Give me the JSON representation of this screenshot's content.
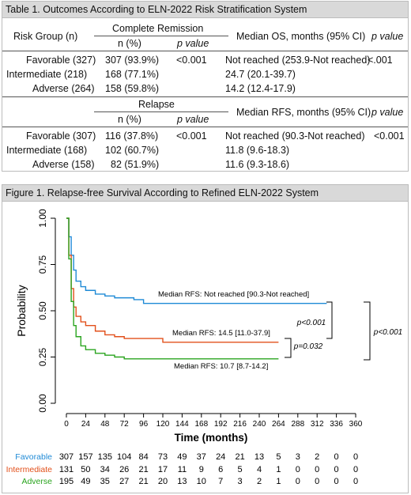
{
  "table1": {
    "title": "Table 1. Outcomes According to ELN-2022 Risk Stratification System",
    "h_risk_group": "Risk  Group  (n)",
    "h_complete_remission": "Complete Remission",
    "h_n_pct": "n (%)",
    "h_p_value": "p value",
    "h_median_os": "Median OS, months (95% CI)",
    "h_p_value_right": "p value",
    "cr_rows": [
      {
        "group": "Favorable (327)",
        "n": "307 (93.9%)",
        "p": "<0.001",
        "os": "Not reached (253.9-Not reached)",
        "p2": "<.001"
      },
      {
        "group": "Intermediate (218)",
        "n": "168 (77.1%)",
        "p": "",
        "os": "24.7 (20.1-39.7)",
        "p2": ""
      },
      {
        "group": "Adverse (264)",
        "n": "158 (59.8%)",
        "p": "",
        "os": "14.2 (12.4-17.9)",
        "p2": ""
      }
    ],
    "h_relapse": "Relapse",
    "h_n_pct_2": "n (%)",
    "h_p_value_2": "p value",
    "h_median_rfs": "Median RFS, months (95% CI)",
    "h_p_value_right_2": "p value",
    "rel_rows": [
      {
        "group": "Favorable (307)",
        "n": "116 (37.8%)",
        "p": "<0.001",
        "rfs": "Not reached (90.3-Not reached)",
        "p2": "<0.001"
      },
      {
        "group": "Intermediate (168)",
        "n": "102 (60.7%)",
        "p": "",
        "rfs": "11.8 (9.6-18.3)",
        "p2": ""
      },
      {
        "group": "Adverse (158)",
        "n": "82 (51.9%)",
        "p": "",
        "rfs": "11.6 (9.3-18.6)",
        "p2": ""
      }
    ]
  },
  "figure1": {
    "title": "Figure 1. Relapse-free Survival According to Refined ELN-2022 System",
    "ylabel": "Probability",
    "xlabel": "Time (months)",
    "y_ticks": [
      "0.00",
      "0.25",
      "0.50",
      "0.75",
      "1.00"
    ],
    "x_ticks": [
      "0",
      "24",
      "48",
      "72",
      "96",
      "120",
      "144",
      "168",
      "192",
      "216",
      "240",
      "264",
      "288",
      "312",
      "336",
      "360"
    ],
    "annot_fav": "Median RFS: Not reached [90.3-Not reached]",
    "annot_int": "Median RFS: 14.5 [11.0-37.9]",
    "annot_adv": "Median RFS: 10.7 [8.7-14.2]",
    "p_fav_int": "p<0.001",
    "p_int_adv": "p=0.032",
    "p_fav_adv": "p<0.001",
    "risk_labels": [
      "Favorable",
      "Intermediate",
      "Adverse"
    ],
    "risk_numbers": [
      [
        "307",
        "157",
        "135",
        "104",
        "84",
        "73",
        "49",
        "37",
        "24",
        "21",
        "13",
        "5",
        "3",
        "2",
        "0",
        "0"
      ],
      [
        "131",
        "50",
        "34",
        "26",
        "21",
        "17",
        "11",
        "9",
        "6",
        "5",
        "4",
        "1",
        "0",
        "0",
        "0",
        "0"
      ],
      [
        "195",
        "49",
        "35",
        "27",
        "21",
        "20",
        "13",
        "10",
        "7",
        "3",
        "2",
        "1",
        "0",
        "0",
        "0",
        "0"
      ]
    ]
  },
  "chart_data": {
    "type": "line",
    "title": "Figure 1. Relapse-free Survival According to Refined ELN-2022 System",
    "xlabel": "Time (months)",
    "ylabel": "Probability",
    "xlim": [
      0,
      360
    ],
    "ylim": [
      0,
      1
    ],
    "x_ticks": [
      0,
      24,
      48,
      72,
      96,
      120,
      144,
      168,
      192,
      216,
      240,
      264,
      288,
      312,
      336,
      360
    ],
    "y_ticks": [
      0,
      0.25,
      0.5,
      0.75,
      1.0
    ],
    "series": [
      {
        "name": "Favorable",
        "color": "#1f8ad6",
        "points": [
          [
            0,
            1.0
          ],
          [
            3,
            0.9
          ],
          [
            6,
            0.8
          ],
          [
            9,
            0.72
          ],
          [
            12,
            0.66
          ],
          [
            18,
            0.63
          ],
          [
            24,
            0.61
          ],
          [
            36,
            0.59
          ],
          [
            48,
            0.58
          ],
          [
            60,
            0.57
          ],
          [
            72,
            0.57
          ],
          [
            84,
            0.56
          ],
          [
            96,
            0.54
          ],
          [
            120,
            0.54
          ],
          [
            264,
            0.54
          ],
          [
            324,
            0.54
          ]
        ]
      },
      {
        "name": "Intermediate",
        "color": "#e2501b",
        "points": [
          [
            0,
            1.0
          ],
          [
            3,
            0.8
          ],
          [
            6,
            0.62
          ],
          [
            9,
            0.52
          ],
          [
            12,
            0.47
          ],
          [
            18,
            0.44
          ],
          [
            24,
            0.42
          ],
          [
            36,
            0.39
          ],
          [
            48,
            0.37
          ],
          [
            60,
            0.36
          ],
          [
            72,
            0.35
          ],
          [
            96,
            0.35
          ],
          [
            120,
            0.33
          ],
          [
            200,
            0.33
          ],
          [
            264,
            0.33
          ]
        ]
      },
      {
        "name": "Adverse",
        "color": "#2aa41f",
        "points": [
          [
            0,
            1.0
          ],
          [
            3,
            0.78
          ],
          [
            6,
            0.55
          ],
          [
            9,
            0.42
          ],
          [
            12,
            0.36
          ],
          [
            18,
            0.31
          ],
          [
            24,
            0.29
          ],
          [
            36,
            0.27
          ],
          [
            48,
            0.26
          ],
          [
            60,
            0.25
          ],
          [
            72,
            0.24
          ],
          [
            96,
            0.24
          ],
          [
            150,
            0.24
          ],
          [
            264,
            0.24
          ]
        ]
      }
    ]
  }
}
